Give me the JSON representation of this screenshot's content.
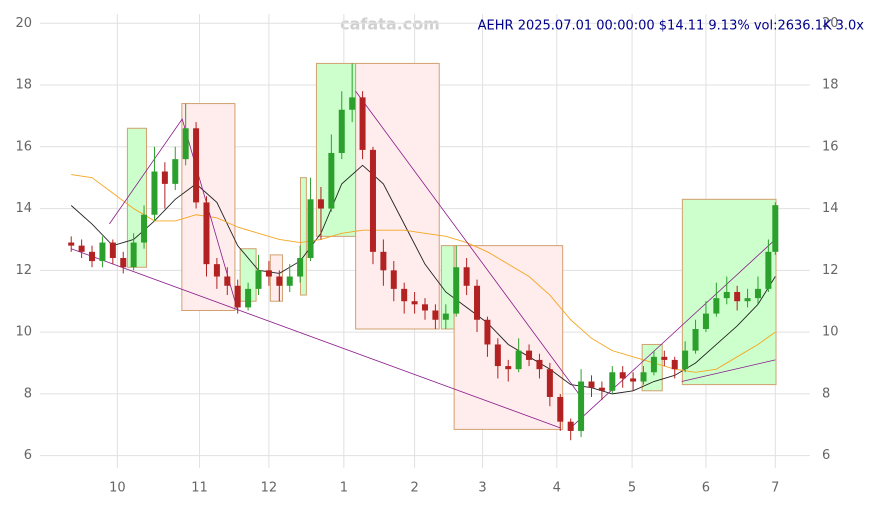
{
  "chart_data": {
    "type": "candlestick",
    "title": "AEHR 2025.07.01 00:00:00 $14.11 9.13% vol:2636.1K 3.0x",
    "watermark": "cafata.com",
    "xlim": [
      -9,
      213
    ],
    "ylim": [
      5.6,
      20.3
    ],
    "xticks": [
      {
        "value": 13.3,
        "label": "10"
      },
      {
        "value": 37,
        "label": "11"
      },
      {
        "value": 57,
        "label": "12"
      },
      {
        "value": 78.6,
        "label": "1"
      },
      {
        "value": 99,
        "label": "2"
      },
      {
        "value": 118.6,
        "label": "3"
      },
      {
        "value": 140,
        "label": "4"
      },
      {
        "value": 161.7,
        "label": "5"
      },
      {
        "value": 183,
        "label": "6"
      },
      {
        "value": 203,
        "label": "7"
      }
    ],
    "yticks": [
      6,
      8,
      10,
      12,
      14,
      16,
      18,
      20
    ],
    "grid": true,
    "up_color": "#2ca02c",
    "down_color": "#b22222",
    "ohlc": {
      "x": [
        0,
        3,
        6,
        9,
        12,
        15,
        18,
        21,
        24,
        27,
        30,
        33,
        36,
        39,
        42,
        45,
        48,
        51,
        54,
        57,
        60,
        63,
        66,
        69,
        72,
        75,
        78,
        81,
        84,
        87,
        90,
        93,
        96,
        99,
        102,
        105,
        108,
        111,
        114,
        117,
        120,
        123,
        126,
        129,
        132,
        135,
        138,
        141,
        144,
        147,
        150,
        153,
        156,
        159,
        162,
        165,
        168,
        171,
        174,
        177,
        180,
        183,
        186,
        189,
        192,
        195,
        198,
        201,
        203
      ],
      "open": [
        12.9,
        12.8,
        12.6,
        12.3,
        12.9,
        12.4,
        12.1,
        12.9,
        13.8,
        15.2,
        14.8,
        15.6,
        16.6,
        14.2,
        12.2,
        11.8,
        11.5,
        10.8,
        11.4,
        12.0,
        11.8,
        11.5,
        11.8,
        12.4,
        14.3,
        14.0,
        15.8,
        17.2,
        17.6,
        15.9,
        12.6,
        12.0,
        11.4,
        11.0,
        10.9,
        10.7,
        10.4,
        10.6,
        12.1,
        11.5,
        10.4,
        9.6,
        8.9,
        8.8,
        9.4,
        9.1,
        8.8,
        7.9,
        7.1,
        6.8,
        8.4,
        8.2,
        8.1,
        8.7,
        8.5,
        8.4,
        8.7,
        9.2,
        9.1,
        8.8,
        9.4,
        10.1,
        10.6,
        11.1,
        11.3,
        11.0,
        11.1,
        11.4,
        12.6
      ],
      "high": [
        13.1,
        13.0,
        12.8,
        13.1,
        13.0,
        12.6,
        13.2,
        14.1,
        16.0,
        15.5,
        16.0,
        17.4,
        16.8,
        14.4,
        12.4,
        12.1,
        11.7,
        11.6,
        12.5,
        12.3,
        12.0,
        12.2,
        12.8,
        15.0,
        14.7,
        16.4,
        17.8,
        18.7,
        17.8,
        16.0,
        13.0,
        12.3,
        11.6,
        11.3,
        11.1,
        10.9,
        10.9,
        12.8,
        12.4,
        11.7,
        10.5,
        9.8,
        9.1,
        9.8,
        9.6,
        9.3,
        9.0,
        8.0,
        7.2,
        8.8,
        8.6,
        8.4,
        8.9,
        8.9,
        8.7,
        8.9,
        9.4,
        9.4,
        9.2,
        9.7,
        10.4,
        11.0,
        11.6,
        11.8,
        11.5,
        11.4,
        11.8,
        13.0,
        14.2
      ],
      "low": [
        12.6,
        12.4,
        12.1,
        12.1,
        12.2,
        11.9,
        12.0,
        12.7,
        13.6,
        14.0,
        14.6,
        15.4,
        14.0,
        11.8,
        11.4,
        11.2,
        10.6,
        10.7,
        11.2,
        11.5,
        11.0,
        11.3,
        11.6,
        12.3,
        13.0,
        13.9,
        15.6,
        16.8,
        15.6,
        12.2,
        11.5,
        11.0,
        10.6,
        10.6,
        10.4,
        10.1,
        10.1,
        10.5,
        11.2,
        10.0,
        9.2,
        8.5,
        8.4,
        8.7,
        8.9,
        8.5,
        7.6,
        6.8,
        6.5,
        6.6,
        7.9,
        7.8,
        8.0,
        8.2,
        8.1,
        8.3,
        8.6,
        8.9,
        8.5,
        8.7,
        9.3,
        10.0,
        10.5,
        10.9,
        10.7,
        10.8,
        10.9,
        11.3,
        12.5
      ],
      "close": [
        12.8,
        12.6,
        12.3,
        12.9,
        12.4,
        12.1,
        12.9,
        13.8,
        15.2,
        14.8,
        15.6,
        16.6,
        14.2,
        12.2,
        11.8,
        11.5,
        10.8,
        11.4,
        12.0,
        11.8,
        11.5,
        11.8,
        12.4,
        14.3,
        14.0,
        15.8,
        17.2,
        17.6,
        15.9,
        12.6,
        12.0,
        11.4,
        11.0,
        10.9,
        10.7,
        10.4,
        10.6,
        12.1,
        11.5,
        10.4,
        9.6,
        8.9,
        8.8,
        9.4,
        9.1,
        8.8,
        7.9,
        7.1,
        6.8,
        8.4,
        8.2,
        8.1,
        8.7,
        8.5,
        8.4,
        8.7,
        9.2,
        9.1,
        8.8,
        9.4,
        10.1,
        10.6,
        11.1,
        11.3,
        11.0,
        11.1,
        11.4,
        12.6,
        14.11
      ]
    },
    "moving_averages": [
      {
        "color": "#222222",
        "x": [
          0,
          6,
          12,
          18,
          24,
          30,
          36,
          42,
          48,
          54,
          60,
          66,
          72,
          78,
          84,
          90,
          96,
          102,
          108,
          114,
          120,
          126,
          132,
          138,
          144,
          150,
          156,
          162,
          168,
          174,
          180,
          186,
          192,
          198,
          203
        ],
        "values": [
          14.1,
          13.5,
          12.8,
          13.0,
          13.6,
          14.3,
          14.8,
          14.2,
          12.8,
          12.0,
          11.9,
          12.3,
          13.2,
          14.8,
          15.4,
          14.8,
          13.5,
          12.2,
          11.3,
          10.8,
          10.3,
          9.6,
          9.2,
          8.8,
          8.3,
          8.2,
          8.0,
          8.1,
          8.4,
          8.6,
          9.0,
          9.6,
          10.2,
          10.9,
          11.8
        ]
      },
      {
        "color": "#f5a623",
        "x": [
          0,
          6,
          12,
          18,
          24,
          30,
          36,
          42,
          48,
          54,
          60,
          66,
          72,
          78,
          84,
          90,
          96,
          102,
          108,
          114,
          120,
          126,
          132,
          138,
          144,
          150,
          156,
          162,
          168,
          174,
          180,
          186,
          192,
          198,
          203
        ],
        "values": [
          15.1,
          15.0,
          14.5,
          14.0,
          13.6,
          13.6,
          13.8,
          13.7,
          13.4,
          13.2,
          13.0,
          12.9,
          13.0,
          13.2,
          13.3,
          13.3,
          13.3,
          13.2,
          13.1,
          12.9,
          12.6,
          12.2,
          11.8,
          11.2,
          10.4,
          9.8,
          9.4,
          9.2,
          9.0,
          8.8,
          8.7,
          8.8,
          9.2,
          9.6,
          10.0
        ]
      }
    ],
    "boxes": [
      {
        "x": [
          16.2,
          21.7
        ],
        "y": [
          12.1,
          16.6
        ],
        "color": "#ccffcc"
      },
      {
        "x": [
          31.9,
          47.2
        ],
        "y": [
          10.7,
          17.4
        ],
        "color": "#ffecec"
      },
      {
        "x": [
          48.7,
          53.3
        ],
        "y": [
          11.0,
          12.7
        ],
        "color": "#ccffcc"
      },
      {
        "x": [
          57.4,
          60.9
        ],
        "y": [
          11.0,
          12.5
        ],
        "color": "#ffecec"
      },
      {
        "x": [
          66.1,
          67.8
        ],
        "y": [
          11.2,
          15.0
        ],
        "color": "#ccffcc"
      },
      {
        "x": [
          70.7,
          82.0
        ],
        "y": [
          13.1,
          18.7
        ],
        "color": "#ccffcc"
      },
      {
        "x": [
          82.0,
          106.1
        ],
        "y": [
          10.1,
          18.7
        ],
        "color": "#ffecec"
      },
      {
        "x": [
          106.7,
          110.4
        ],
        "y": [
          10.1,
          12.8
        ],
        "color": "#ccffcc"
      },
      {
        "x": [
          110.4,
          141.7
        ],
        "y": [
          6.85,
          12.8
        ],
        "color": "#ffecec"
      },
      {
        "x": [
          164.6,
          170.4
        ],
        "y": [
          8.1,
          9.6
        ],
        "color": "#ccffcc"
      },
      {
        "x": [
          176.2,
          203.2
        ],
        "y": [
          8.3,
          14.3
        ],
        "color": "#ccffcc"
      }
    ],
    "trendlines": [
      {
        "color": "#8b1a8b",
        "x": [
          11,
          32,
          48
        ],
        "y": [
          13.5,
          16.9,
          10.7
        ]
      },
      {
        "color": "#8b1a8b",
        "x": [
          82,
          147
        ],
        "y": [
          17.8,
          7.9
        ]
      },
      {
        "color": "#8b1a8b",
        "x": [
          0,
          141
        ],
        "y": [
          12.7,
          6.9
        ]
      },
      {
        "color": "#8b1a8b",
        "x": [
          144,
          203
        ],
        "y": [
          6.9,
          13.0
        ]
      },
      {
        "color": "#8b1a8b",
        "x": [
          176,
          203
        ],
        "y": [
          8.4,
          9.1
        ]
      }
    ]
  }
}
